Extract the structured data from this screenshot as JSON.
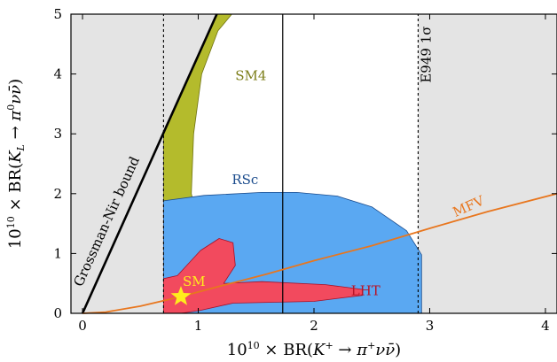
{
  "chart_data": {
    "type": "area",
    "xlim": [
      -0.1,
      4.1
    ],
    "ylim": [
      0,
      5
    ],
    "x_ticks": [
      0,
      1,
      2,
      3,
      4
    ],
    "y_ticks": [
      0,
      1,
      2,
      3,
      4,
      5
    ],
    "x_tick_labels": [
      "0",
      "1",
      "2",
      "3",
      "4"
    ],
    "y_tick_labels": [
      "0",
      "1",
      "2",
      "3",
      "4",
      "5"
    ],
    "xlabel": "10¹⁰ × BR(K⁺ → π⁺νν̄)",
    "ylabel": "10¹⁰ × BR(K_L → π⁰νν̄)",
    "colors": {
      "excluded": "#e4e4e4",
      "sm4": "#b4bb2c",
      "rsc": "#5aa8f2",
      "lht": "#f24a5e",
      "mfv": "#e8761e",
      "sm_star": "#ffee1c",
      "rsc_label": "#1a4b8c",
      "lht_label": "#b81326",
      "sm4_label": "#7b7d17",
      "sm_label": "#ffee1c"
    },
    "grossman_nir": {
      "label": "Grossman-Nir bound",
      "slope": 4.3,
      "points": [
        [
          0,
          0
        ],
        [
          1.16,
          5
        ]
      ]
    },
    "e949_band": {
      "label": "E949 1σ",
      "x_low": 0.7,
      "x_high": 2.9,
      "x_central": 1.73
    },
    "mfv": {
      "label": "MFV",
      "points": [
        [
          0.0,
          0.0
        ],
        [
          0.2,
          0.02
        ],
        [
          0.5,
          0.12
        ],
        [
          0.85,
          0.28
        ],
        [
          1.2,
          0.46
        ],
        [
          1.6,
          0.66
        ],
        [
          2.0,
          0.88
        ],
        [
          2.5,
          1.13
        ],
        [
          3.0,
          1.42
        ],
        [
          3.5,
          1.7
        ],
        [
          4.1,
          2.0
        ]
      ]
    },
    "regions": [
      {
        "name": "SM4",
        "label": "SM4",
        "label_at": [
          1.32,
          3.9
        ],
        "polygon": [
          [
            1.29,
            5.0
          ],
          [
            1.17,
            4.72
          ],
          [
            1.03,
            4.0
          ],
          [
            0.96,
            3.0
          ],
          [
            0.94,
            2.0
          ],
          [
            1.0,
            1.55
          ],
          [
            1.18,
            1.1
          ],
          [
            1.32,
            0.6
          ],
          [
            1.54,
            0.1
          ],
          [
            1.62,
            0.0
          ],
          [
            0.7,
            0.0
          ],
          [
            0.7,
            3.05
          ],
          [
            0.85,
            3.68
          ],
          [
            1.16,
            5.0
          ]
        ]
      },
      {
        "name": "RSc",
        "label": "RSc",
        "label_at": [
          1.29,
          2.16
        ],
        "polygon": [
          [
            0.7,
            1.88
          ],
          [
            1.05,
            1.97
          ],
          [
            1.55,
            2.02
          ],
          [
            1.85,
            2.02
          ],
          [
            2.2,
            1.96
          ],
          [
            2.5,
            1.78
          ],
          [
            2.8,
            1.38
          ],
          [
            2.93,
            0.98
          ],
          [
            2.93,
            0.0
          ],
          [
            0.7,
            0.0
          ]
        ]
      },
      {
        "name": "LHT",
        "label": "LHT",
        "label_at": [
          2.32,
          0.3
        ],
        "polygon": [
          [
            0.7,
            0.0
          ],
          [
            0.7,
            0.58
          ],
          [
            0.82,
            0.63
          ],
          [
            1.02,
            1.05
          ],
          [
            1.18,
            1.25
          ],
          [
            1.3,
            1.18
          ],
          [
            1.32,
            0.8
          ],
          [
            1.22,
            0.5
          ],
          [
            1.55,
            0.53
          ],
          [
            2.1,
            0.48
          ],
          [
            2.42,
            0.4
          ],
          [
            2.42,
            0.3
          ],
          [
            2.0,
            0.2
          ],
          [
            1.3,
            0.17
          ],
          [
            1.02,
            0.05
          ],
          [
            0.85,
            0.0
          ]
        ]
      }
    ],
    "sm_point": {
      "label": "SM",
      "x": 0.85,
      "y": 0.28
    }
  }
}
